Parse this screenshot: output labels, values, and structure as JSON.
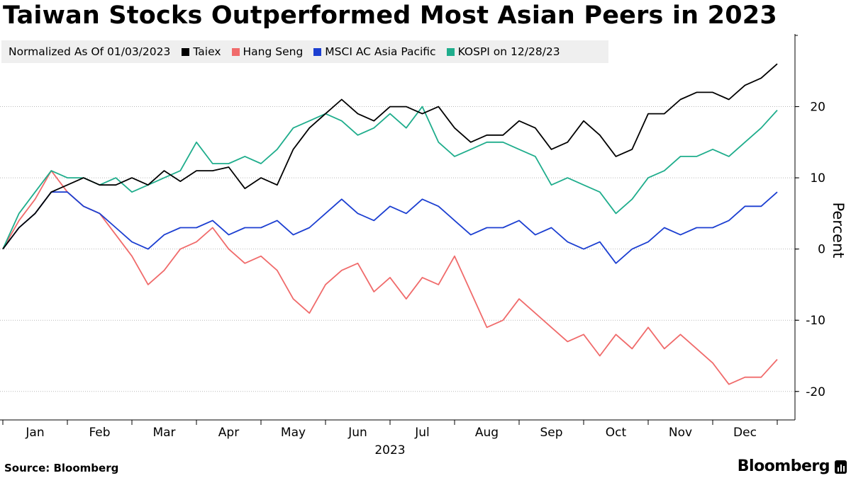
{
  "title": "Taiwan Stocks Outperformed Most Asian Peers in 2023",
  "source": "Source: Bloomberg",
  "brand": "Bloomberg",
  "chart_data": {
    "type": "line",
    "title": "Taiwan Stocks Outperformed Most Asian Peers in 2023",
    "note": "Normalized As Of 01/03/2023",
    "xlabel": "2023",
    "ylabel": "Percent",
    "ylim": [
      -24,
      30
    ],
    "yticks": [
      20,
      10,
      0,
      -10,
      -20
    ],
    "ytick_labels": [
      "20",
      "10",
      "0",
      "-10",
      "-20"
    ],
    "months": [
      "Jan",
      "Feb",
      "Mar",
      "Apr",
      "May",
      "Jun",
      "Jul",
      "Aug",
      "Sep",
      "Oct",
      "Nov",
      "Dec"
    ],
    "x_unit": "month (0 = Jan 3, 12 = Dec 31)",
    "xlim": [
      0,
      12
    ],
    "series": [
      {
        "name": "Taiex",
        "color": "#000000",
        "x": [
          0,
          0.25,
          0.5,
          0.75,
          1.0,
          1.25,
          1.5,
          1.75,
          2.0,
          2.25,
          2.5,
          2.75,
          3.0,
          3.25,
          3.5,
          3.75,
          4.0,
          4.25,
          4.5,
          4.75,
          5.0,
          5.25,
          5.5,
          5.75,
          6.0,
          6.25,
          6.5,
          6.75,
          7.0,
          7.25,
          7.5,
          7.75,
          8.0,
          8.25,
          8.5,
          8.75,
          9.0,
          9.25,
          9.5,
          9.75,
          10.0,
          10.25,
          10.5,
          10.75,
          11.0,
          11.25,
          11.5,
          11.75,
          12.0
        ],
        "values": [
          0,
          3,
          5,
          8,
          9,
          10,
          9,
          9,
          10,
          9,
          11,
          9.5,
          11,
          11,
          11.5,
          8.5,
          10,
          9,
          14,
          17,
          19,
          21,
          19,
          18,
          20,
          20,
          19,
          20,
          17,
          15,
          16,
          16,
          18,
          17,
          14,
          15,
          18,
          16,
          13,
          14,
          19,
          19,
          21,
          22,
          22,
          21,
          23,
          24,
          26
        ]
      },
      {
        "name": "Hang Seng",
        "color": "#f06b6b",
        "x": [
          0,
          0.25,
          0.5,
          0.75,
          1.0,
          1.25,
          1.5,
          1.75,
          2.0,
          2.25,
          2.5,
          2.75,
          3.0,
          3.25,
          3.5,
          3.75,
          4.0,
          4.25,
          4.5,
          4.75,
          5.0,
          5.25,
          5.5,
          5.75,
          6.0,
          6.25,
          6.5,
          6.75,
          7.0,
          7.25,
          7.5,
          7.75,
          8.0,
          8.25,
          8.5,
          8.75,
          9.0,
          9.25,
          9.5,
          9.75,
          10.0,
          10.25,
          10.5,
          10.75,
          11.0,
          11.25,
          11.5,
          11.75,
          12.0
        ],
        "values": [
          0,
          4,
          7,
          11,
          8,
          6,
          5,
          2,
          -1,
          -5,
          -3,
          0,
          1,
          3,
          0,
          -2,
          -1,
          -3,
          -7,
          -9,
          -5,
          -3,
          -2,
          -6,
          -4,
          -7,
          -4,
          -5,
          -1,
          -6,
          -11,
          -10,
          -7,
          -9,
          -11,
          -13,
          -12,
          -15,
          -12,
          -14,
          -11,
          -14,
          -12,
          -14,
          -16,
          -19,
          -18,
          -18,
          -15.5
        ]
      },
      {
        "name": "MSCI AC Asia Pacific",
        "color": "#1c3fd1",
        "x": [
          0,
          0.25,
          0.5,
          0.75,
          1.0,
          1.25,
          1.5,
          1.75,
          2.0,
          2.25,
          2.5,
          2.75,
          3.0,
          3.25,
          3.5,
          3.75,
          4.0,
          4.25,
          4.5,
          4.75,
          5.0,
          5.25,
          5.5,
          5.75,
          6.0,
          6.25,
          6.5,
          6.75,
          7.0,
          7.25,
          7.5,
          7.75,
          8.0,
          8.25,
          8.5,
          8.75,
          9.0,
          9.25,
          9.5,
          9.75,
          10.0,
          10.25,
          10.5,
          10.75,
          11.0,
          11.25,
          11.5,
          11.75,
          12.0
        ],
        "values": [
          0,
          3,
          5,
          8,
          8,
          6,
          5,
          3,
          1,
          0,
          2,
          3,
          3,
          4,
          2,
          3,
          3,
          4,
          2,
          3,
          5,
          7,
          5,
          4,
          6,
          5,
          7,
          6,
          4,
          2,
          3,
          3,
          4,
          2,
          3,
          1,
          0,
          1,
          -2,
          0,
          1,
          3,
          2,
          3,
          3,
          4,
          6,
          6,
          8
        ]
      },
      {
        "name": "KOSPI on 12/28/23",
        "color": "#1fad8c",
        "x": [
          0,
          0.25,
          0.5,
          0.75,
          1.0,
          1.25,
          1.5,
          1.75,
          2.0,
          2.25,
          2.5,
          2.75,
          3.0,
          3.25,
          3.5,
          3.75,
          4.0,
          4.25,
          4.5,
          4.75,
          5.0,
          5.25,
          5.5,
          5.75,
          6.0,
          6.25,
          6.5,
          6.75,
          7.0,
          7.25,
          7.5,
          7.75,
          8.0,
          8.25,
          8.5,
          8.75,
          9.0,
          9.25,
          9.5,
          9.75,
          10.0,
          10.25,
          10.5,
          10.75,
          11.0,
          11.25,
          11.5,
          11.75,
          12.0
        ],
        "values": [
          0,
          5,
          8,
          11,
          10,
          10,
          9,
          10,
          8,
          9,
          10,
          11,
          15,
          12,
          12,
          13,
          12,
          14,
          17,
          18,
          19,
          18,
          16,
          17,
          19,
          17,
          20,
          15,
          13,
          14,
          15,
          15,
          14,
          13,
          9,
          10,
          9,
          8,
          5,
          7,
          10,
          11,
          13,
          13,
          14,
          13,
          15,
          17,
          19.5
        ]
      }
    ]
  }
}
